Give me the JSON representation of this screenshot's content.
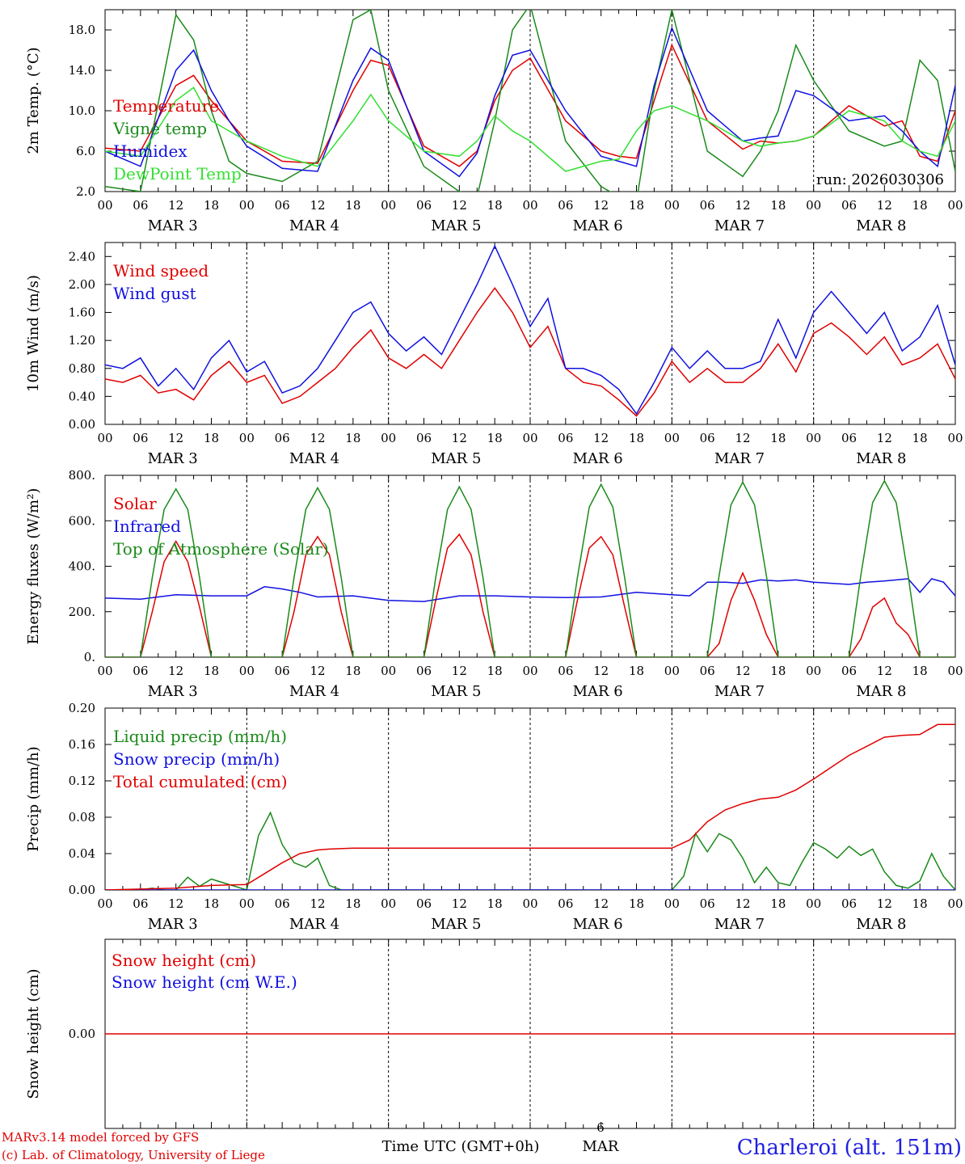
{
  "colors": {
    "red": "#e00000",
    "green": "#1a8a1a",
    "blue": "#1010e0",
    "lightgreen": "#33e033",
    "black": "#000000"
  },
  "x_ticks": [
    "00",
    "06",
    "12",
    "18"
  ],
  "x_end_label": "00",
  "days": [
    "MAR  3",
    "MAR  4",
    "MAR  5",
    "MAR  6",
    "MAR  7",
    "MAR  8"
  ],
  "run_label": "run: 2026030306",
  "footer": {
    "model": "MARv3.14 model forced by GFS",
    "credit": "(c) Lab. of Climatology, University of Liege",
    "axis_title": "Time UTC (GMT+0h)",
    "current_day": "6",
    "current_month": "MAR",
    "station": "Charleroi (alt. 151m)"
  },
  "chart_data": [
    {
      "id": "temp",
      "type": "line",
      "ylabel": "2m Temp. (°C)",
      "ylim": [
        2.0,
        20.0
      ],
      "yticks": [
        "2.0",
        "6.0",
        "10.0",
        "14.0",
        "18.0"
      ],
      "ytick_values": [
        2,
        6,
        10,
        14,
        18
      ],
      "legend": [
        "Temperature",
        "Vigne temp",
        "Humidex",
        "DewPoint Temp"
      ],
      "series": [
        {
          "name": "Temperature",
          "color": "red",
          "x": [
            0,
            6,
            12,
            15,
            18,
            21,
            24,
            30,
            36,
            42,
            45,
            48,
            54,
            60,
            63,
            66,
            69,
            72,
            78,
            84,
            87,
            90,
            93,
            96,
            102,
            108,
            111,
            114,
            117,
            120,
            126,
            132,
            135,
            138,
            141,
            144
          ],
          "values": [
            6.3,
            6.0,
            12.5,
            13.5,
            11.0,
            9.0,
            7.0,
            5.0,
            4.8,
            12.0,
            15.0,
            14.5,
            6.5,
            4.5,
            6.0,
            11.0,
            14.0,
            15.2,
            9.0,
            6.0,
            5.5,
            5.3,
            11.0,
            16.5,
            9.0,
            6.2,
            7.0,
            6.8,
            7.0,
            7.5,
            10.5,
            8.5,
            9.0,
            5.5,
            5.0,
            10.0
          ]
        },
        {
          "name": "Vigne temp",
          "color": "green",
          "x": [
            0,
            6,
            12,
            15,
            18,
            21,
            24,
            30,
            36,
            42,
            45,
            48,
            54,
            60,
            63,
            66,
            69,
            72,
            78,
            84,
            87,
            90,
            93,
            96,
            102,
            108,
            111,
            114,
            117,
            120,
            126,
            132,
            135,
            138,
            141,
            144
          ],
          "values": [
            2.5,
            2.0,
            19.5,
            17.0,
            10.0,
            5.0,
            3.8,
            3.0,
            5.0,
            19.0,
            20.0,
            12.0,
            4.5,
            2.0,
            1.5,
            9.0,
            18.0,
            20.5,
            7.0,
            2.5,
            1.5,
            1.0,
            12.0,
            20.0,
            6.0,
            3.5,
            6.0,
            10.0,
            16.5,
            13.0,
            8.0,
            6.5,
            7.0,
            15.0,
            13.0,
            4.0
          ]
        },
        {
          "name": "Humidex",
          "color": "blue",
          "x": [
            0,
            6,
            12,
            15,
            18,
            21,
            24,
            30,
            36,
            42,
            45,
            48,
            54,
            60,
            63,
            66,
            69,
            72,
            78,
            84,
            87,
            90,
            93,
            96,
            102,
            108,
            111,
            114,
            117,
            120,
            126,
            132,
            135,
            138,
            141,
            144
          ],
          "values": [
            6.0,
            4.5,
            14.0,
            16.0,
            12.0,
            9.0,
            6.5,
            4.3,
            4.0,
            13.0,
            16.2,
            15.0,
            6.0,
            3.5,
            5.8,
            11.5,
            15.5,
            16.0,
            10.0,
            5.5,
            5.0,
            4.5,
            12.5,
            18.2,
            10.0,
            7.0,
            7.3,
            7.5,
            12.0,
            11.5,
            9.0,
            9.5,
            8.0,
            6.0,
            4.5,
            12.5
          ]
        },
        {
          "name": "DewPoint Temp",
          "color": "lightgreen",
          "x": [
            0,
            6,
            12,
            15,
            18,
            21,
            24,
            30,
            36,
            42,
            45,
            48,
            54,
            60,
            63,
            66,
            69,
            72,
            78,
            84,
            87,
            90,
            93,
            96,
            102,
            108,
            111,
            114,
            117,
            120,
            126,
            132,
            135,
            138,
            141,
            144
          ],
          "values": [
            6.0,
            5.5,
            11.0,
            12.3,
            9.0,
            8.0,
            7.0,
            5.5,
            4.5,
            9.0,
            11.6,
            9.0,
            6.0,
            5.5,
            7.0,
            9.5,
            8.0,
            7.0,
            4.0,
            5.0,
            5.2,
            8.0,
            10.0,
            10.5,
            9.0,
            7.0,
            6.5,
            6.8,
            7.0,
            7.5,
            10.0,
            9.0,
            7.0,
            6.0,
            5.5,
            9.0
          ]
        }
      ]
    },
    {
      "id": "wind",
      "type": "line",
      "ylabel": "10m Wind (m/s)",
      "ylim": [
        0.0,
        2.6
      ],
      "yticks": [
        "0.00",
        "0.40",
        "0.80",
        "1.20",
        "1.60",
        "2.00",
        "2.40"
      ],
      "ytick_values": [
        0,
        0.4,
        0.8,
        1.2,
        1.6,
        2.0,
        2.4
      ],
      "legend": [
        "Wind speed",
        "Wind gust"
      ],
      "series": [
        {
          "name": "Wind speed",
          "color": "red",
          "x": [
            0,
            3,
            6,
            9,
            12,
            15,
            18,
            21,
            24,
            27,
            30,
            33,
            36,
            39,
            42,
            45,
            48,
            51,
            54,
            57,
            60,
            63,
            66,
            69,
            72,
            75,
            78,
            81,
            84,
            87,
            90,
            93,
            96,
            99,
            102,
            105,
            108,
            111,
            114,
            117,
            120,
            123,
            126,
            129,
            132,
            135,
            138,
            141,
            144
          ],
          "values": [
            0.65,
            0.6,
            0.7,
            0.45,
            0.5,
            0.35,
            0.7,
            0.9,
            0.6,
            0.7,
            0.3,
            0.4,
            0.6,
            0.8,
            1.1,
            1.35,
            0.95,
            0.8,
            1.0,
            0.8,
            1.2,
            1.6,
            1.95,
            1.6,
            1.1,
            1.4,
            0.8,
            0.6,
            0.55,
            0.35,
            0.12,
            0.45,
            0.9,
            0.6,
            0.8,
            0.6,
            0.6,
            0.8,
            1.15,
            0.75,
            1.3,
            1.45,
            1.25,
            1.0,
            1.25,
            0.85,
            0.95,
            1.15,
            0.65
          ]
        },
        {
          "name": "Wind gust",
          "color": "blue",
          "x": [
            0,
            3,
            6,
            9,
            12,
            15,
            18,
            21,
            24,
            27,
            30,
            33,
            36,
            39,
            42,
            45,
            48,
            51,
            54,
            57,
            60,
            63,
            66,
            69,
            72,
            75,
            78,
            81,
            84,
            87,
            90,
            93,
            96,
            99,
            102,
            105,
            108,
            111,
            114,
            117,
            120,
            123,
            126,
            129,
            132,
            135,
            138,
            141,
            144
          ],
          "values": [
            0.85,
            0.8,
            0.95,
            0.55,
            0.8,
            0.5,
            0.95,
            1.2,
            0.75,
            0.9,
            0.45,
            0.55,
            0.8,
            1.2,
            1.6,
            1.75,
            1.3,
            1.05,
            1.25,
            1.0,
            1.5,
            2.0,
            2.55,
            2.0,
            1.4,
            1.8,
            0.8,
            0.8,
            0.7,
            0.5,
            0.15,
            0.6,
            1.1,
            0.8,
            1.05,
            0.8,
            0.8,
            0.9,
            1.5,
            0.95,
            1.6,
            1.9,
            1.6,
            1.3,
            1.6,
            1.05,
            1.25,
            1.7,
            0.85
          ]
        }
      ]
    },
    {
      "id": "energy",
      "type": "line",
      "ylabel": "Energy fluxes (W/m²)",
      "ylim": [
        0,
        800
      ],
      "yticks": [
        "0.",
        "200.",
        "400.",
        "600.",
        "800."
      ],
      "ytick_values": [
        0,
        200,
        400,
        600,
        800
      ],
      "legend": [
        "Solar",
        "Infrared",
        "Top of Atmosphere (Solar)"
      ],
      "series": [
        {
          "name": "Solar",
          "color": "red",
          "x": [
            0,
            6,
            8,
            10,
            12,
            14,
            16,
            18,
            24,
            30,
            32,
            34,
            36,
            38,
            40,
            42,
            48,
            54,
            56,
            58,
            60,
            62,
            64,
            66,
            72,
            78,
            80,
            82,
            84,
            86,
            88,
            90,
            96,
            102,
            104,
            106,
            108,
            110,
            112,
            114,
            120,
            126,
            128,
            130,
            132,
            134,
            136,
            138,
            144
          ],
          "values": [
            0,
            0,
            200,
            420,
            510,
            420,
            220,
            0,
            0,
            0,
            200,
            450,
            530,
            450,
            200,
            0,
            0,
            0,
            250,
            480,
            540,
            450,
            200,
            0,
            0,
            0,
            250,
            480,
            530,
            450,
            220,
            0,
            0,
            0,
            60,
            250,
            370,
            250,
            100,
            0,
            0,
            0,
            80,
            220,
            260,
            150,
            100,
            0,
            0
          ]
        },
        {
          "name": "Infrared",
          "color": "blue",
          "x": [
            0,
            6,
            12,
            18,
            24,
            27,
            30,
            33,
            36,
            42,
            48,
            54,
            60,
            66,
            72,
            78,
            84,
            90,
            96,
            99,
            102,
            105,
            108,
            111,
            114,
            117,
            120,
            123,
            126,
            129,
            132,
            134,
            136,
            138,
            140,
            142,
            144
          ],
          "values": [
            260,
            255,
            275,
            270,
            270,
            310,
            300,
            285,
            265,
            270,
            250,
            245,
            270,
            270,
            265,
            262,
            265,
            285,
            275,
            270,
            330,
            330,
            325,
            340,
            335,
            340,
            330,
            325,
            320,
            330,
            335,
            340,
            345,
            285,
            345,
            330,
            270
          ]
        },
        {
          "name": "Top of Atmosphere (Solar)",
          "color": "green",
          "x": [
            0,
            6,
            8,
            10,
            12,
            14,
            16,
            18,
            24,
            30,
            32,
            34,
            36,
            38,
            40,
            42,
            48,
            54,
            56,
            58,
            60,
            62,
            64,
            66,
            72,
            78,
            80,
            82,
            84,
            86,
            88,
            90,
            96,
            102,
            104,
            106,
            108,
            110,
            112,
            114,
            120,
            126,
            128,
            130,
            132,
            134,
            136,
            138,
            144
          ],
          "values": [
            0,
            0,
            350,
            650,
            740,
            650,
            350,
            0,
            0,
            0,
            350,
            650,
            745,
            650,
            350,
            0,
            0,
            0,
            350,
            650,
            750,
            650,
            350,
            0,
            0,
            0,
            350,
            660,
            760,
            660,
            350,
            0,
            0,
            0,
            360,
            670,
            770,
            670,
            360,
            0,
            0,
            0,
            360,
            680,
            775,
            680,
            360,
            0,
            0
          ]
        }
      ]
    },
    {
      "id": "precip",
      "type": "line",
      "ylabel": "Precip (mm/h)",
      "ylim": [
        0,
        0.2
      ],
      "yticks": [
        "0.00",
        "0.04",
        "0.08",
        "0.12",
        "0.16",
        "0.20"
      ],
      "ytick_values": [
        0,
        0.04,
        0.08,
        0.12,
        0.16,
        0.2
      ],
      "legend": [
        "Liquid precip (mm/h)",
        "Snow precip (mm/h)",
        "Total cumulated (cm)"
      ],
      "series": [
        {
          "name": "Liquid precip (mm/h)",
          "color": "green",
          "x": [
            0,
            6,
            8,
            10,
            12,
            14,
            16,
            18,
            24,
            26,
            28,
            30,
            32,
            34,
            36,
            38,
            40,
            42,
            48,
            96,
            98,
            100,
            102,
            104,
            106,
            108,
            110,
            112,
            114,
            116,
            118,
            120,
            122,
            124,
            126,
            128,
            130,
            132,
            134,
            136,
            138,
            140,
            142,
            144
          ],
          "values": [
            0,
            0,
            0.002,
            0,
            0,
            0.014,
            0.004,
            0.012,
            0,
            0.06,
            0.085,
            0.05,
            0.03,
            0.025,
            0.035,
            0.005,
            0,
            0,
            0,
            0,
            0.015,
            0.062,
            0.042,
            0.062,
            0.055,
            0.035,
            0.008,
            0.025,
            0.008,
            0.005,
            0.03,
            0.052,
            0.045,
            0.035,
            0.048,
            0.038,
            0.045,
            0.02,
            0.005,
            0.002,
            0.01,
            0.04,
            0.015,
            0
          ]
        },
        {
          "name": "Snow precip (mm/h)",
          "color": "blue",
          "x": [
            0,
            144
          ],
          "values": [
            0,
            0
          ]
        },
        {
          "name": "Total cumulated (cm)",
          "color": "red",
          "x": [
            0,
            12,
            18,
            24,
            27,
            30,
            33,
            36,
            38,
            42,
            48,
            96,
            99,
            102,
            105,
            108,
            111,
            114,
            117,
            120,
            123,
            126,
            129,
            132,
            135,
            138,
            141,
            144
          ],
          "values": [
            0,
            0.002,
            0.005,
            0.006,
            0.018,
            0.03,
            0.04,
            0.044,
            0.045,
            0.046,
            0.046,
            0.046,
            0.055,
            0.075,
            0.088,
            0.095,
            0.1,
            0.102,
            0.11,
            0.122,
            0.135,
            0.148,
            0.158,
            0.168,
            0.17,
            0.171,
            0.182,
            0.182
          ]
        }
      ]
    },
    {
      "id": "snow",
      "type": "line",
      "ylabel": "Snow height (cm)",
      "ylim": [
        -1,
        1
      ],
      "yticks": [
        "0.00"
      ],
      "ytick_values": [
        0
      ],
      "legend": [
        "Snow height (cm)",
        "Snow height (cm W.E.)"
      ],
      "series": [
        {
          "name": "Snow height (cm)",
          "color": "red",
          "x": [
            0,
            144
          ],
          "values": [
            0,
            0
          ]
        }
      ]
    }
  ]
}
